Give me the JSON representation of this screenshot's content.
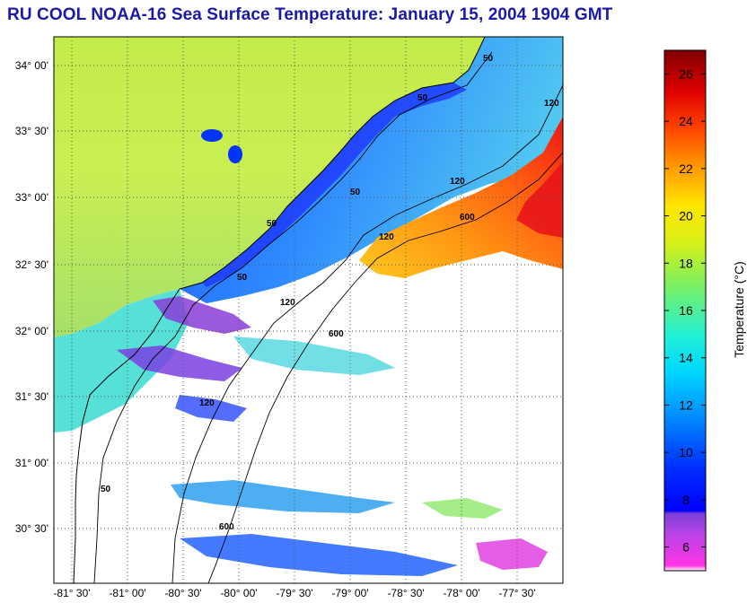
{
  "title": "RU COOL  NOAA-16  Sea Surface Temperature:  January 15, 2004 1904 GMT",
  "lat_labels": [
    "34° 00'",
    "33° 30'",
    "33° 00'",
    "32° 30'",
    "32° 00'",
    "31° 30'",
    "31° 00'",
    "30° 30'"
  ],
  "lon_labels": [
    "-81° 30'",
    "-81° 00'",
    "-80° 30'",
    "-80° 00'",
    "-79° 30'",
    "-79° 00'",
    "-78° 30'",
    "-78° 00'",
    "-77° 30'"
  ],
  "contour_labels": [
    "50",
    "50",
    "50",
    "50",
    "50",
    "50",
    "120",
    "120",
    "120",
    "120",
    "120",
    "600",
    "600",
    "600"
  ],
  "colorbar": {
    "title": "Temperature (°C)",
    "ticks": [
      "26",
      "24",
      "22",
      "20",
      "18",
      "16",
      "14",
      "12",
      "10",
      "8",
      "6"
    ],
    "tick_values": [
      26,
      24,
      22,
      20,
      18,
      16,
      14,
      12,
      10,
      8,
      6
    ],
    "range": [
      5,
      27
    ]
  },
  "colors": {
    "title": "#1a1aa6",
    "land": "#b9e83a",
    "no_data": "#ffffff"
  }
}
